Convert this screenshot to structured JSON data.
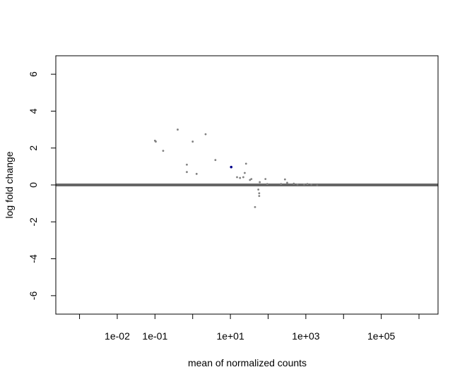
{
  "chart_data": {
    "type": "scatter",
    "title": "",
    "xlabel": "mean of normalized counts",
    "ylabel": "log fold change",
    "x_scale": "log10",
    "xlim": [
      0.000235,
      3200000
    ],
    "ylim": [
      -7,
      7
    ],
    "x_ticks": [
      0.001,
      0.01,
      0.1,
      1,
      10,
      100,
      1000,
      10000,
      100000,
      1000000
    ],
    "x_tick_labels": [
      "",
      "1e-02",
      "1e-01",
      "",
      "1e+01",
      "",
      "1e+03",
      "",
      "1e+05",
      ""
    ],
    "y_ticks": [
      -6,
      -4,
      -2,
      0,
      2,
      4,
      6
    ],
    "y_tick_labels": [
      "-6",
      "-4",
      "-2",
      "0",
      "2",
      "4",
      "6"
    ],
    "reference_line": {
      "y": 0,
      "color": "#666666"
    },
    "grid": false,
    "legend": "none",
    "point_color": "#808080",
    "highlight_color": "#00008b",
    "points": [
      {
        "x": 0.1,
        "y": 2.4
      },
      {
        "x": 0.105,
        "y": 2.35
      },
      {
        "x": 0.165,
        "y": 1.85
      },
      {
        "x": 0.4,
        "y": 3.0
      },
      {
        "x": 0.7,
        "y": 1.1
      },
      {
        "x": 0.7,
        "y": 0.7
      },
      {
        "x": 1.0,
        "y": 2.35
      },
      {
        "x": 1.27,
        "y": 0.6
      },
      {
        "x": 2.2,
        "y": 2.75
      },
      {
        "x": 4.0,
        "y": 1.35
      },
      {
        "x": 10.5,
        "y": 0.97,
        "highlight": true
      },
      {
        "x": 15,
        "y": 0.42
      },
      {
        "x": 18,
        "y": 0.38
      },
      {
        "x": 22,
        "y": 0.42
      },
      {
        "x": 24,
        "y": 0.65
      },
      {
        "x": 26,
        "y": 1.15
      },
      {
        "x": 33,
        "y": 0.27
      },
      {
        "x": 36,
        "y": 0.32
      },
      {
        "x": 45,
        "y": -1.2
      },
      {
        "x": 55,
        "y": -0.25
      },
      {
        "x": 58,
        "y": -0.45
      },
      {
        "x": 58,
        "y": -0.6
      },
      {
        "x": 60,
        "y": 0.15
      },
      {
        "x": 85,
        "y": 0.32
      },
      {
        "x": 95,
        "y": 0.05
      },
      {
        "x": 220,
        "y": 0.05
      },
      {
        "x": 280,
        "y": 0.3
      },
      {
        "x": 320,
        "y": 0.12
      },
      {
        "x": 480,
        "y": 0.07
      },
      {
        "x": 600,
        "y": 0.02
      },
      {
        "x": 900,
        "y": 0.02
      },
      {
        "x": 1100,
        "y": 0.05
      },
      {
        "x": 1400,
        "y": 0.02
      },
      {
        "x": 2000,
        "y": -0.02
      }
    ]
  }
}
